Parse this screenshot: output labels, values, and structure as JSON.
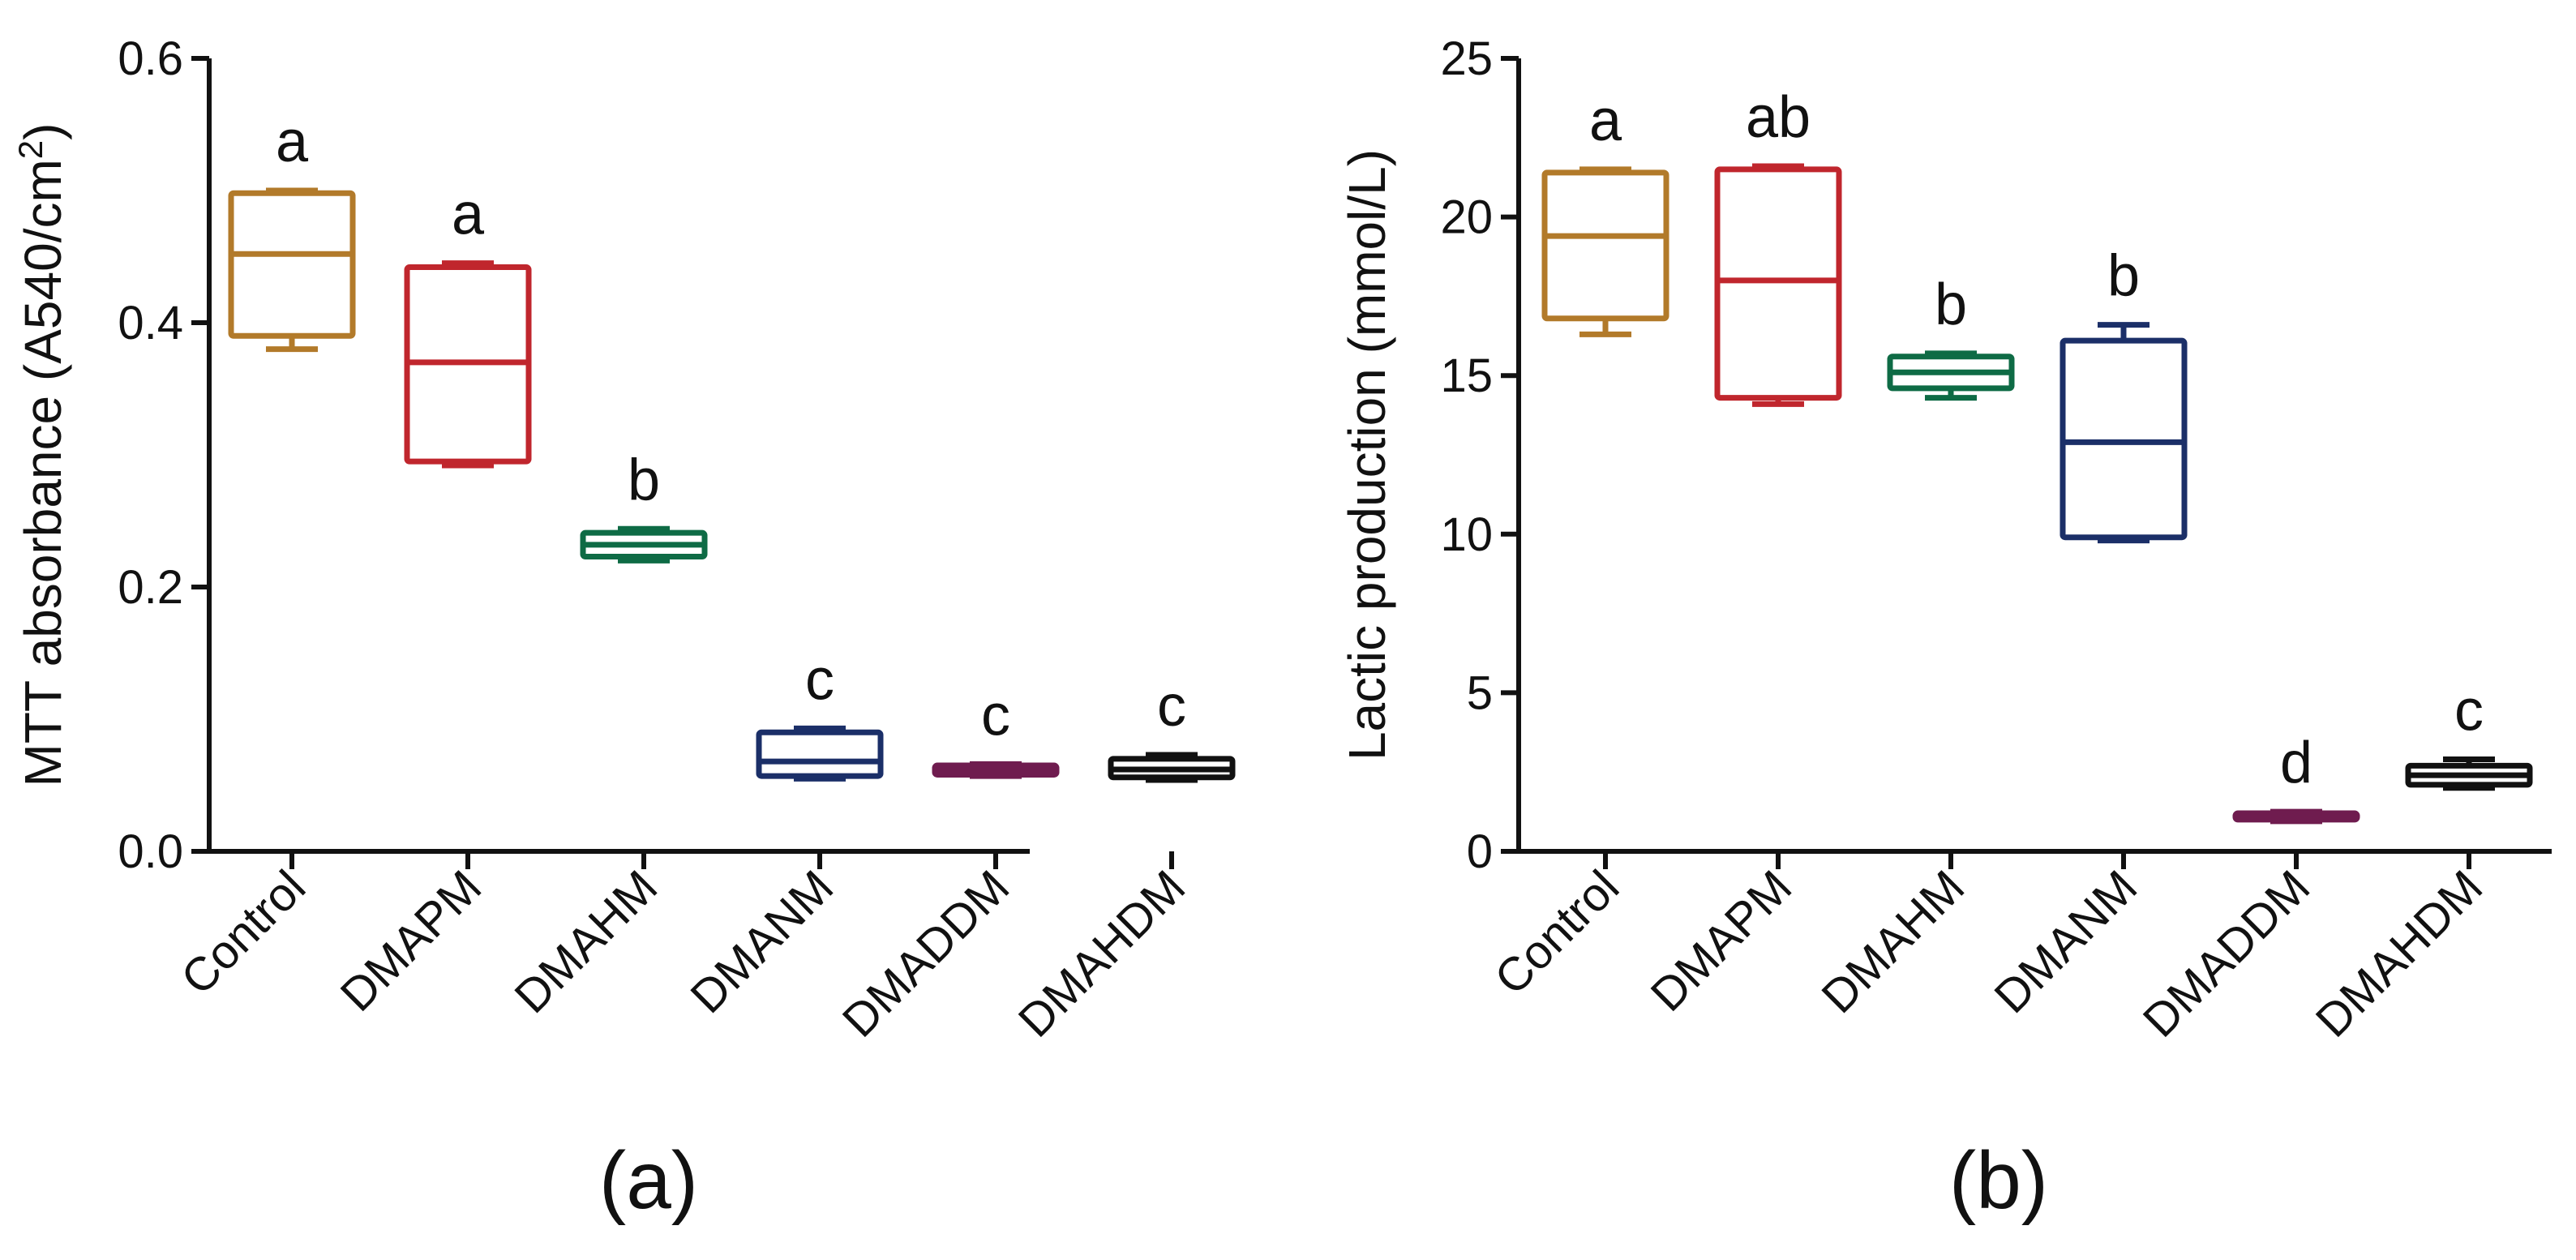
{
  "panels": [
    {
      "label": "(a)"
    },
    {
      "label": "(b)"
    }
  ],
  "chart_data": [
    {
      "type": "box",
      "panel": "(a)",
      "title": "",
      "xlabel": "",
      "ylabel": "MTT absorbance (A540/cm",
      "ylabel_sup": "2",
      "ylabel_close": ")",
      "ylim": [
        0,
        0.6
      ],
      "yticks": [
        0.0,
        0.2,
        0.4,
        0.6
      ],
      "ytick_labels": [
        "0.0",
        "0.2",
        "0.4",
        "0.6"
      ],
      "categories": [
        "Control",
        "DMAPM",
        "DMAHM",
        "DMANM",
        "DMADDM",
        "DMAHDM"
      ],
      "colors": [
        "#B27A2A",
        "#C0262D",
        "#0E6B45",
        "#1B2F68",
        "#6F1C4F",
        "#111111"
      ],
      "boxes": [
        {
          "min": 0.38,
          "q1": 0.39,
          "median": 0.452,
          "q3": 0.498,
          "max": 0.5
        },
        {
          "min": 0.292,
          "q1": 0.295,
          "median": 0.37,
          "q3": 0.442,
          "max": 0.445
        },
        {
          "min": 0.22,
          "q1": 0.223,
          "median": 0.232,
          "q3": 0.241,
          "max": 0.244
        },
        {
          "min": 0.055,
          "q1": 0.057,
          "median": 0.068,
          "q3": 0.09,
          "max": 0.093
        },
        {
          "min": 0.057,
          "q1": 0.058,
          "median": 0.061,
          "q3": 0.065,
          "max": 0.066
        },
        {
          "min": 0.054,
          "q1": 0.056,
          "median": 0.062,
          "q3": 0.07,
          "max": 0.073
        }
      ],
      "significance": [
        "a",
        "a",
        "b",
        "c",
        "c",
        "c"
      ]
    },
    {
      "type": "box",
      "panel": "(b)",
      "title": "",
      "xlabel": "",
      "ylabel": "Lactic production (mmol/L)",
      "ylim": [
        0,
        25
      ],
      "yticks": [
        0,
        5,
        10,
        15,
        20,
        25
      ],
      "ytick_labels": [
        "0",
        "5",
        "10",
        "15",
        "20",
        "25"
      ],
      "categories": [
        "Control",
        "DMAPM",
        "DMAHM",
        "DMANM",
        "DMADDM",
        "DMAHDM"
      ],
      "colors": [
        "#B27A2A",
        "#C0262D",
        "#0E6B45",
        "#1B2F68",
        "#6F1C4F",
        "#111111"
      ],
      "boxes": [
        {
          "min": 16.3,
          "q1": 16.8,
          "median": 19.4,
          "q3": 21.4,
          "max": 21.5
        },
        {
          "min": 14.1,
          "q1": 14.3,
          "median": 18.0,
          "q3": 21.5,
          "max": 21.6
        },
        {
          "min": 14.3,
          "q1": 14.6,
          "median": 15.1,
          "q3": 15.6,
          "max": 15.7
        },
        {
          "min": 9.8,
          "q1": 9.9,
          "median": 12.9,
          "q3": 16.1,
          "max": 16.6
        },
        {
          "min": 0.95,
          "q1": 1.0,
          "median": 1.1,
          "q3": 1.2,
          "max": 1.25
        },
        {
          "min": 2.0,
          "q1": 2.1,
          "median": 2.4,
          "q3": 2.7,
          "max": 2.9
        }
      ],
      "significance": [
        "a",
        "ab",
        "b",
        "b",
        "d",
        "c"
      ]
    }
  ]
}
